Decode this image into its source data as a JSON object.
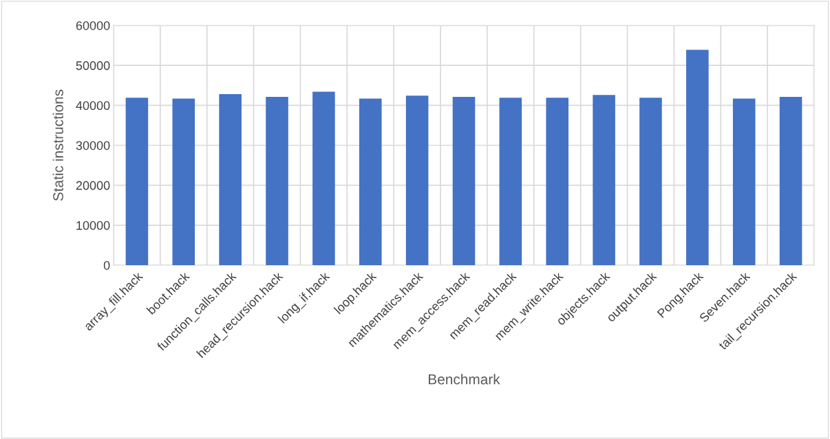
{
  "chart_data": {
    "type": "bar",
    "xlabel": "Benchmark",
    "ylabel": "Static instructions",
    "categories": [
      "array_fill.hack",
      "boot.hack",
      "function_calls.hack",
      "head_recursion.hack",
      "long_if.hack",
      "loop.hack",
      "mathematics.hack",
      "mem_access.hack",
      "mem_read.hack",
      "mem_write.hack",
      "objects.hack",
      "output.hack",
      "Pong.hack",
      "Seven.hack",
      "tail_recursion.hack"
    ],
    "values": [
      41900,
      41700,
      42800,
      42100,
      43400,
      41700,
      42400,
      42100,
      41900,
      41900,
      42600,
      41900,
      53900,
      41700,
      42100
    ],
    "color": "#4472c4",
    "ylim": [
      0,
      60000
    ],
    "yticks": [
      0,
      10000,
      20000,
      30000,
      40000,
      50000,
      60000
    ],
    "grid": true
  }
}
